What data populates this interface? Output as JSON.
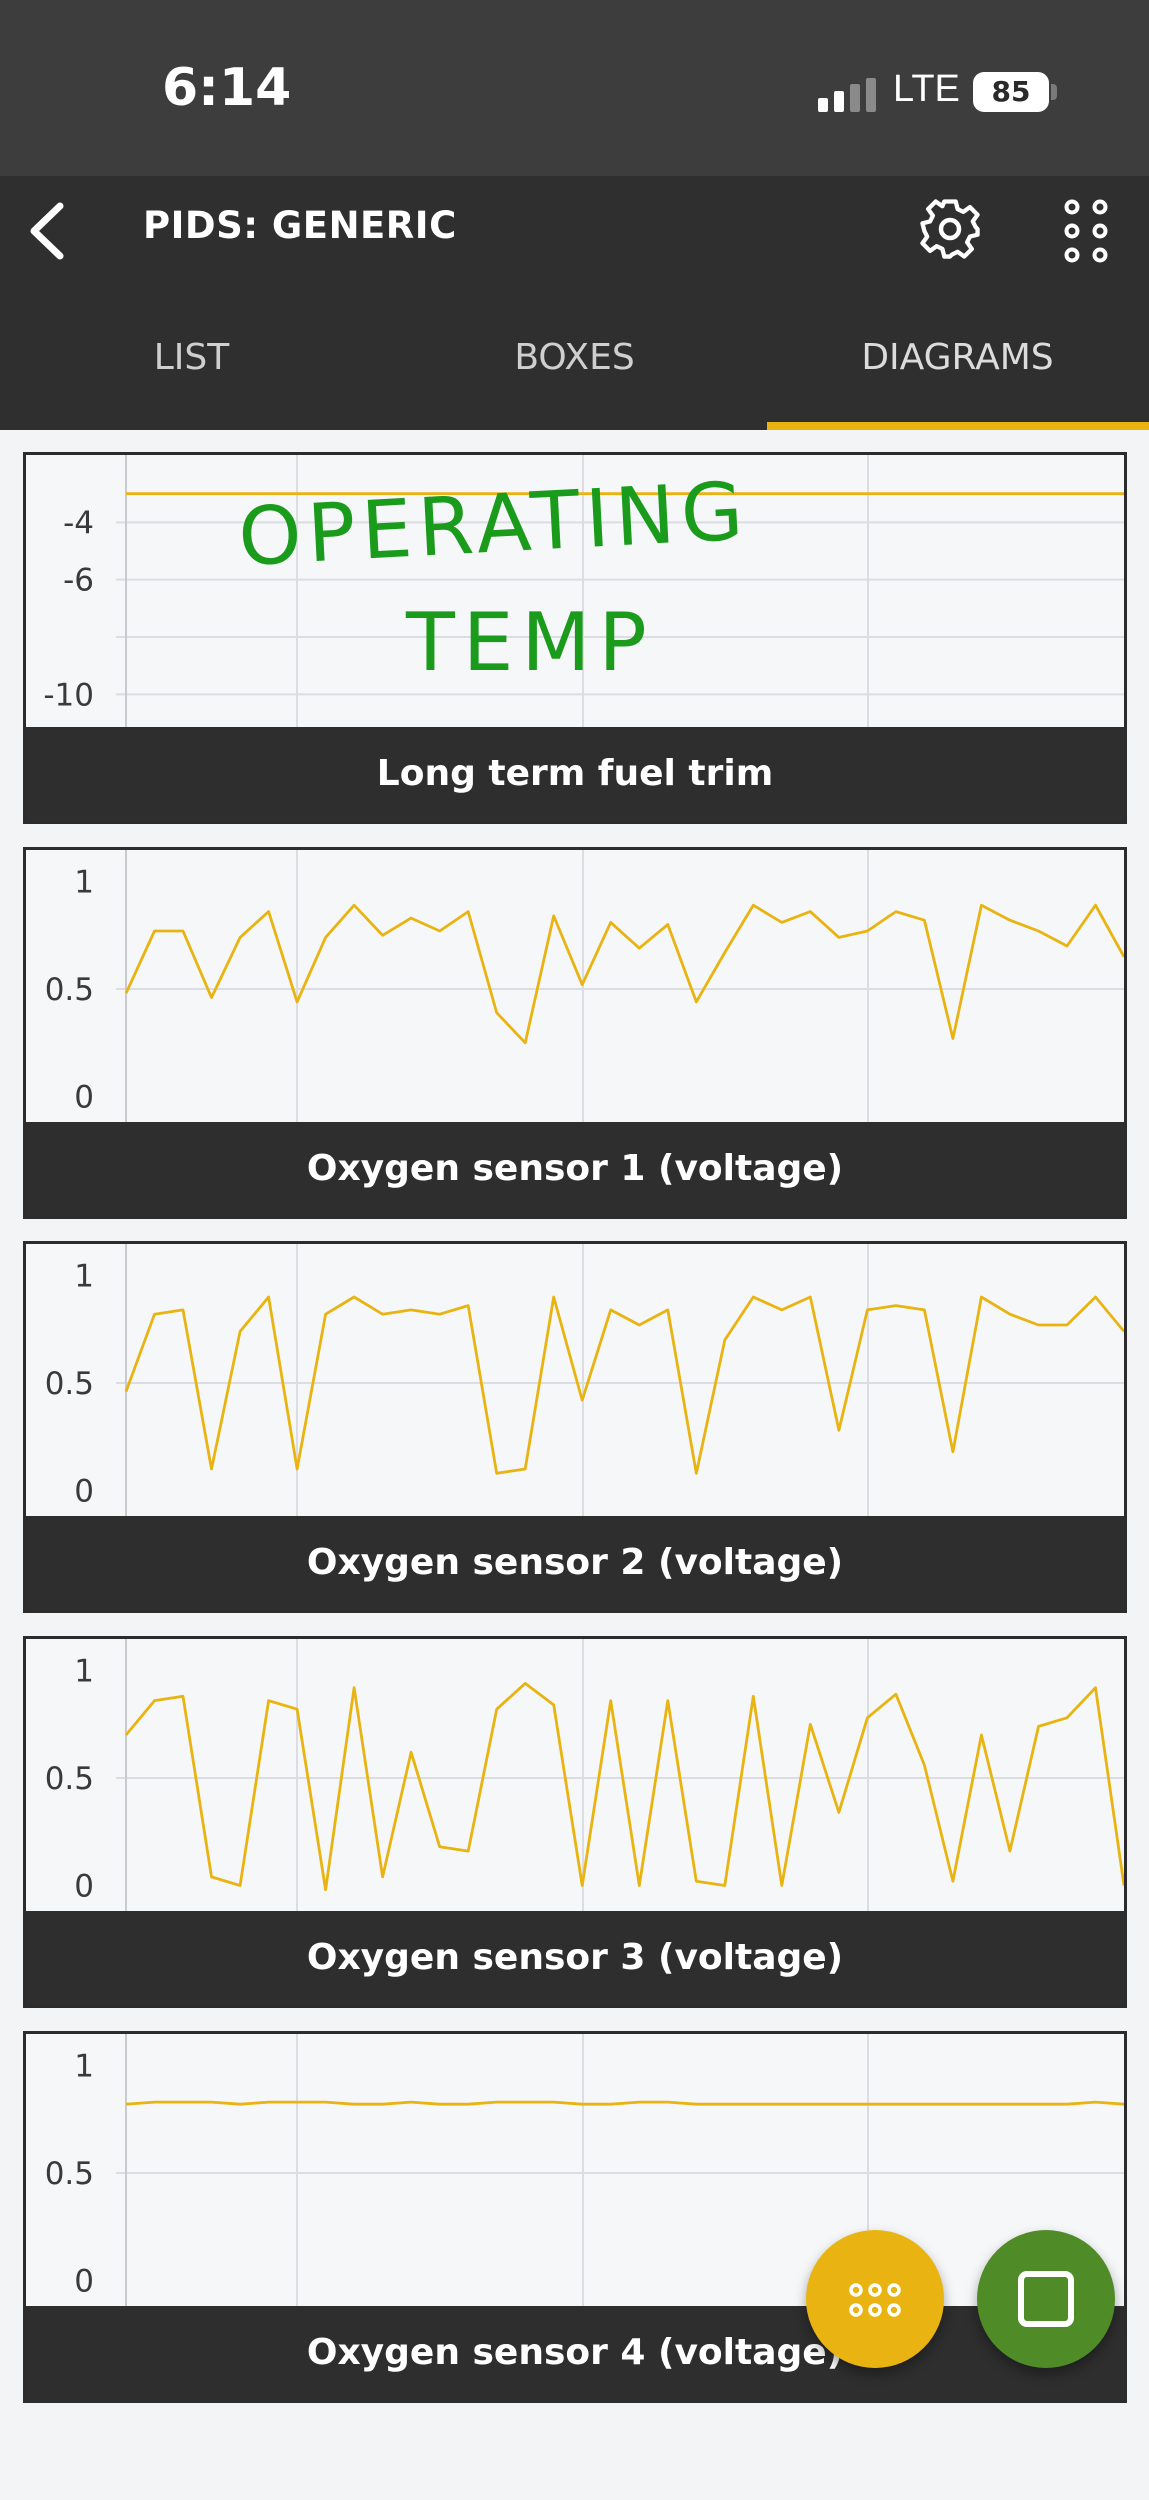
{
  "status_bar": {
    "time": "6:14",
    "network": "LTE",
    "battery": "85",
    "signal_icon": "cellular-signal-icon"
  },
  "app_bar": {
    "title": "PIDS: GENERIC",
    "back_icon": "back-arrow-icon",
    "settings_icon": "gear-icon",
    "more_icon": "dots-grid-icon"
  },
  "tabs": [
    {
      "label": "LIST",
      "active": false
    },
    {
      "label": "BOXES",
      "active": false
    },
    {
      "label": "DIAGRAMS",
      "active": true
    }
  ],
  "annotation": {
    "line1": "OPERATING",
    "line2": "TEMP",
    "color": "#1b9b1b"
  },
  "accent_color": "#e9b412",
  "chart_data": [
    {
      "type": "line",
      "title": "Long term fuel trim",
      "ylim": [
        -11,
        -2
      ],
      "yticks": [
        "-4",
        "-6",
        "-10"
      ],
      "ytick_values": [
        -4,
        -6,
        -10
      ],
      "gridlines": [
        -4,
        -6,
        -8,
        -10
      ],
      "values": [
        -3,
        -3,
        -3,
        -3,
        -3,
        -3,
        -3,
        -3,
        -3,
        -3,
        -3,
        -3,
        -3,
        -3,
        -3,
        -3,
        -3,
        -3,
        -3,
        -3,
        -3,
        -3,
        -3,
        -3,
        -3,
        -3,
        -3,
        -3,
        -3,
        -3,
        -3,
        -3,
        -3,
        -3,
        -3,
        -3
      ]
    },
    {
      "type": "line",
      "title": "Oxygen sensor 1 (voltage)",
      "ylim": [
        -0.1,
        1.1
      ],
      "yticks": [
        "1",
        "0.5",
        "0"
      ],
      "ytick_values": [
        1,
        0.5,
        0
      ],
      "gridlines": [
        0.5
      ],
      "values": [
        0.48,
        0.77,
        0.77,
        0.46,
        0.74,
        0.86,
        0.44,
        0.74,
        0.89,
        0.75,
        0.83,
        0.77,
        0.86,
        0.39,
        0.25,
        0.84,
        0.52,
        0.81,
        0.69,
        0.8,
        0.44,
        0.67,
        0.89,
        0.81,
        0.86,
        0.74,
        0.77,
        0.86,
        0.82,
        0.27,
        0.89,
        0.82,
        0.77,
        0.7,
        0.89,
        0.65
      ]
    },
    {
      "type": "line",
      "title": "Oxygen sensor 2 (voltage)",
      "ylim": [
        -0.1,
        1.1
      ],
      "yticks": [
        "1",
        "0.5",
        "0"
      ],
      "ytick_values": [
        1,
        0.5,
        0
      ],
      "gridlines": [
        0.5
      ],
      "values": [
        0.46,
        0.82,
        0.84,
        0.1,
        0.74,
        0.9,
        0.1,
        0.82,
        0.9,
        0.82,
        0.84,
        0.82,
        0.86,
        0.08,
        0.1,
        0.9,
        0.42,
        0.84,
        0.77,
        0.84,
        0.08,
        0.7,
        0.9,
        0.84,
        0.9,
        0.28,
        0.84,
        0.86,
        0.84,
        0.18,
        0.9,
        0.82,
        0.77,
        0.77,
        0.9,
        0.74
      ]
    },
    {
      "type": "line",
      "title": "Oxygen sensor 3 (voltage)",
      "ylim": [
        -0.1,
        1.1
      ],
      "yticks": [
        "1",
        "0.5",
        "0"
      ],
      "ytick_values": [
        1,
        0.5,
        0
      ],
      "gridlines": [
        0.5
      ],
      "values": [
        0.7,
        0.86,
        0.88,
        0.04,
        0.0,
        0.86,
        0.82,
        -0.02,
        0.92,
        0.04,
        0.62,
        0.18,
        0.16,
        0.82,
        0.94,
        0.84,
        0.0,
        0.86,
        0.0,
        0.86,
        0.02,
        0.0,
        0.88,
        0.0,
        0.75,
        0.34,
        0.78,
        0.89,
        0.56,
        0.02,
        0.7,
        0.16,
        0.74,
        0.78,
        0.92,
        0.0
      ]
    },
    {
      "type": "line",
      "title": "Oxygen sensor 4 (voltage)",
      "ylim": [
        -0.1,
        1.1
      ],
      "yticks": [
        "1",
        "0.5",
        "0"
      ],
      "ytick_values": [
        1,
        0.5,
        0
      ],
      "gridlines": [
        0.5
      ],
      "values": [
        0.82,
        0.83,
        0.83,
        0.83,
        0.82,
        0.83,
        0.83,
        0.83,
        0.82,
        0.82,
        0.83,
        0.82,
        0.82,
        0.83,
        0.83,
        0.83,
        0.82,
        0.82,
        0.83,
        0.83,
        0.82,
        0.82,
        0.82,
        0.82,
        0.82,
        0.82,
        0.82,
        0.82,
        0.82,
        0.82,
        0.82,
        0.82,
        0.82,
        0.82,
        0.83,
        0.82
      ]
    }
  ],
  "fabs": {
    "grid_icon": "dots-grid-icon",
    "square_icon": "square-icon"
  }
}
